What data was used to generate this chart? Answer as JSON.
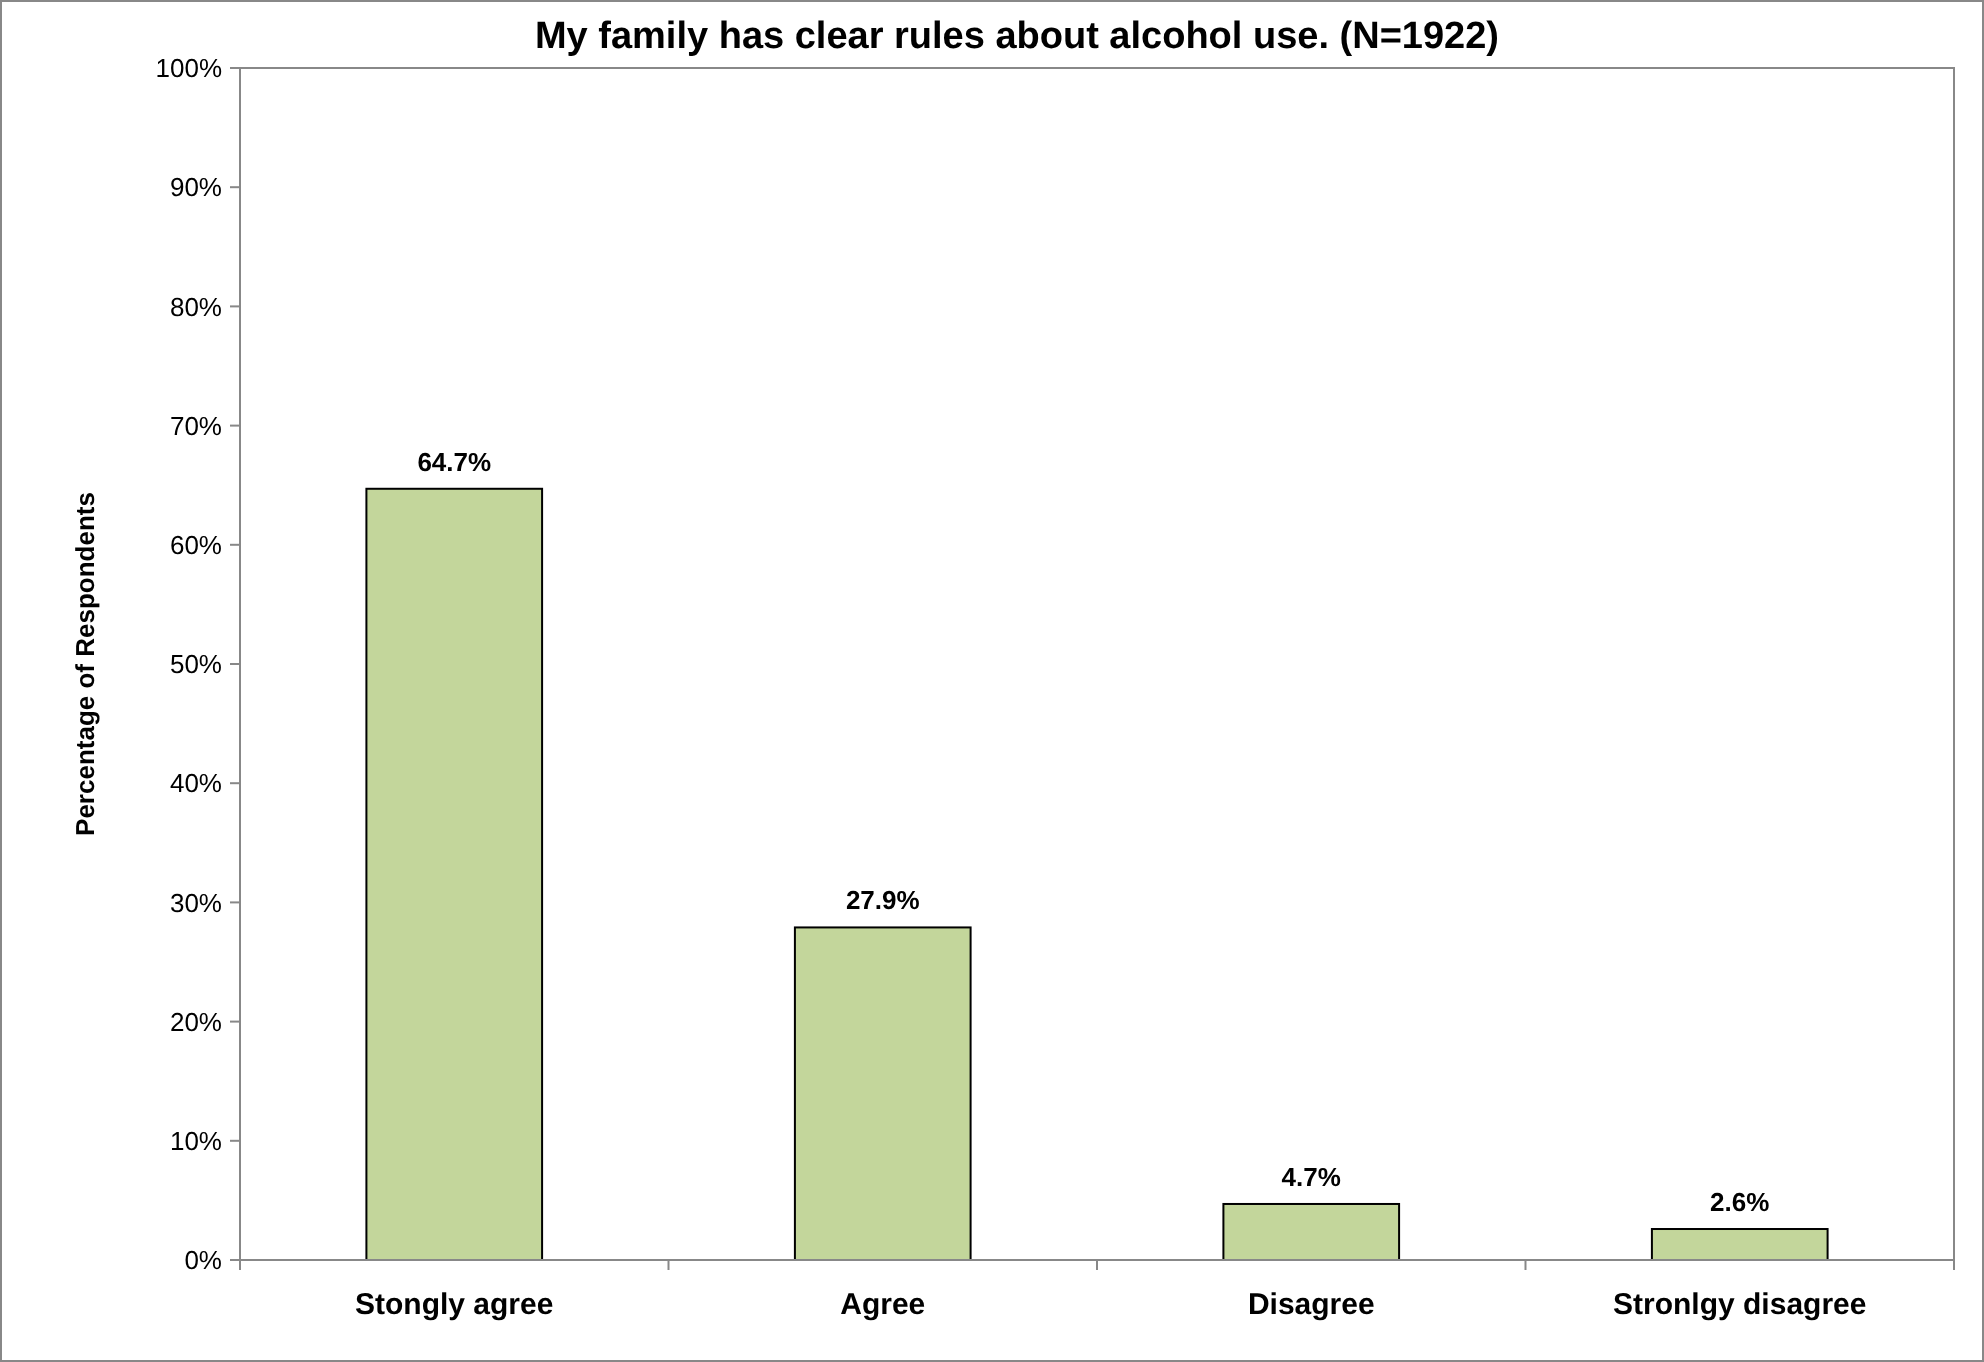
{
  "chart_data": {
    "type": "bar",
    "title": "My family has clear rules about alcohol use. (N=1922)",
    "ylabel": "Percentage of Respondents",
    "categories": [
      "Stongly agree",
      "Agree",
      "Disagree",
      "Stronlgy disagree"
    ],
    "values": [
      64.7,
      27.9,
      4.7,
      2.6
    ],
    "color": "#c3d69b",
    "value_labels": [
      "64.7%",
      "27.9%",
      "4.7%",
      "2.6%"
    ],
    "ylim": [
      0,
      100
    ],
    "yticks": [
      {
        "value": 0,
        "label": "0%"
      },
      {
        "value": 10,
        "label": "10%"
      },
      {
        "value": 20,
        "label": "20%"
      },
      {
        "value": 30,
        "label": "30%"
      },
      {
        "value": 40,
        "label": "40%"
      },
      {
        "value": 50,
        "label": "50%"
      },
      {
        "value": 60,
        "label": "60%"
      },
      {
        "value": 70,
        "label": "70%"
      },
      {
        "value": 80,
        "label": "80%"
      },
      {
        "value": 90,
        "label": "90%"
      },
      {
        "value": 100,
        "label": "100%"
      }
    ],
    "grid": false
  }
}
